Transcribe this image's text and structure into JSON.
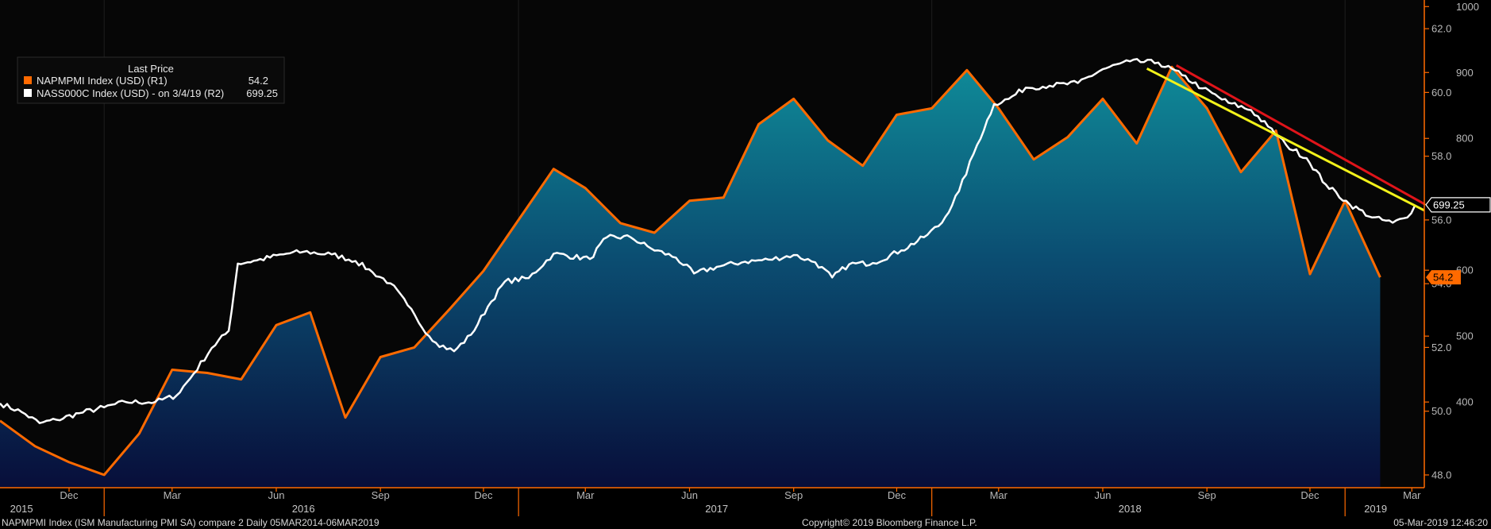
{
  "chart_data": {
    "type": "line",
    "legend": {
      "title": "Last Price",
      "placement": "top-left",
      "entries": [
        {
          "label": "NAPMPMI Index (USD)  (R1)",
          "value": "54.2",
          "color": "#ff6a00"
        },
        {
          "label": "NASS000C Index (USD) -  on 3/4/19  (R2)",
          "value": "699.25",
          "color": "#ffffff"
        }
      ]
    },
    "x_axis": {
      "month_ticks": [
        {
          "label": "Dec",
          "date": "2015-12-01"
        },
        {
          "label": "Mar",
          "date": "2016-03-01"
        },
        {
          "label": "Jun",
          "date": "2016-06-01"
        },
        {
          "label": "Sep",
          "date": "2016-09-01"
        },
        {
          "label": "Dec",
          "date": "2016-12-01"
        },
        {
          "label": "Mar",
          "date": "2017-03-01"
        },
        {
          "label": "Jun",
          "date": "2017-06-01"
        },
        {
          "label": "Sep",
          "date": "2017-09-01"
        },
        {
          "label": "Dec",
          "date": "2017-12-01"
        },
        {
          "label": "Mar",
          "date": "2018-03-01"
        },
        {
          "label": "Jun",
          "date": "2018-06-01"
        },
        {
          "label": "Sep",
          "date": "2018-09-01"
        },
        {
          "label": "Dec",
          "date": "2018-12-01"
        },
        {
          "label": "Mar",
          "date": "2019-03-01"
        }
      ],
      "year_labels": [
        {
          "label": "2015",
          "date": "2015-10-20"
        },
        {
          "label": "2016",
          "date": "2016-06-25"
        },
        {
          "label": "2017",
          "date": "2017-06-25"
        },
        {
          "label": "2018",
          "date": "2018-06-25"
        },
        {
          "label": "2019",
          "date": "2019-01-28"
        }
      ],
      "year_boundaries": [
        "2016-01-01",
        "2017-01-01",
        "2018-01-01",
        "2019-01-01"
      ],
      "range": [
        "2015-10-01",
        "2019-03-12"
      ]
    },
    "y_axis_r1": {
      "range": [
        47.6,
        62.9
      ],
      "ticks": [
        "48.0",
        "50.0",
        "52.0",
        "54.0",
        "56.0",
        "58.0",
        "60.0",
        "62.0"
      ]
    },
    "y_axis_r2": {
      "range": [
        270,
        1010
      ],
      "ticks": [
        "400",
        "500",
        "600",
        "700",
        "800",
        "900",
        "1000"
      ]
    },
    "series": [
      {
        "name": "NAPMPMI Index (USD)",
        "axis": "R1",
        "color": "#ff6a00",
        "fill_area": true,
        "last_value_label": "54.2",
        "points": [
          {
            "x": "2015-10-01",
            "y": 49.7
          },
          {
            "x": "2015-11-01",
            "y": 48.9
          },
          {
            "x": "2015-12-01",
            "y": 48.4
          },
          {
            "x": "2016-01-01",
            "y": 48.0
          },
          {
            "x": "2016-02-01",
            "y": 49.3
          },
          {
            "x": "2016-03-01",
            "y": 51.3
          },
          {
            "x": "2016-04-01",
            "y": 51.2
          },
          {
            "x": "2016-05-01",
            "y": 51.0
          },
          {
            "x": "2016-06-01",
            "y": 52.7
          },
          {
            "x": "2016-07-01",
            "y": 53.1
          },
          {
            "x": "2016-08-01",
            "y": 49.8
          },
          {
            "x": "2016-09-01",
            "y": 51.7
          },
          {
            "x": "2016-10-01",
            "y": 52.0
          },
          {
            "x": "2016-11-01",
            "y": 53.2
          },
          {
            "x": "2016-12-01",
            "y": 54.4
          },
          {
            "x": "2017-01-01",
            "y": 56.0
          },
          {
            "x": "2017-02-01",
            "y": 57.6
          },
          {
            "x": "2017-03-01",
            "y": 57.0
          },
          {
            "x": "2017-04-01",
            "y": 55.9
          },
          {
            "x": "2017-05-01",
            "y": 55.6
          },
          {
            "x": "2017-06-01",
            "y": 56.6
          },
          {
            "x": "2017-07-01",
            "y": 56.7
          },
          {
            "x": "2017-08-01",
            "y": 59.0
          },
          {
            "x": "2017-09-01",
            "y": 59.8
          },
          {
            "x": "2017-10-01",
            "y": 58.5
          },
          {
            "x": "2017-11-01",
            "y": 57.7
          },
          {
            "x": "2017-12-01",
            "y": 59.3
          },
          {
            "x": "2018-01-01",
            "y": 59.5
          },
          {
            "x": "2018-02-01",
            "y": 60.7
          },
          {
            "x": "2018-03-01",
            "y": 59.5
          },
          {
            "x": "2018-04-01",
            "y": 57.9
          },
          {
            "x": "2018-05-01",
            "y": 58.6
          },
          {
            "x": "2018-06-01",
            "y": 59.8
          },
          {
            "x": "2018-07-01",
            "y": 58.4
          },
          {
            "x": "2018-08-01",
            "y": 60.8
          },
          {
            "x": "2018-09-01",
            "y": 59.5
          },
          {
            "x": "2018-10-01",
            "y": 57.5
          },
          {
            "x": "2018-11-01",
            "y": 58.8
          },
          {
            "x": "2018-12-01",
            "y": 54.3
          },
          {
            "x": "2019-01-01",
            "y": 56.6
          },
          {
            "x": "2019-02-01",
            "y": 54.2
          }
        ]
      },
      {
        "name": "NASS000C Index (USD)",
        "axis": "R2",
        "color": "#ffffff",
        "last_value_label": "699.25",
        "points": [
          {
            "x": "2015-10-01",
            "y": 398
          },
          {
            "x": "2015-10-20",
            "y": 385
          },
          {
            "x": "2015-11-05",
            "y": 368
          },
          {
            "x": "2015-11-20",
            "y": 373
          },
          {
            "x": "2015-12-10",
            "y": 383
          },
          {
            "x": "2016-01-01",
            "y": 392
          },
          {
            "x": "2016-01-20",
            "y": 400
          },
          {
            "x": "2016-02-15",
            "y": 400
          },
          {
            "x": "2016-03-05",
            "y": 410
          },
          {
            "x": "2016-03-20",
            "y": 443
          },
          {
            "x": "2016-04-05",
            "y": 482
          },
          {
            "x": "2016-04-20",
            "y": 508
          },
          {
            "x": "2016-04-28",
            "y": 610
          },
          {
            "x": "2016-05-15",
            "y": 615
          },
          {
            "x": "2016-06-10",
            "y": 625
          },
          {
            "x": "2016-06-25",
            "y": 628
          },
          {
            "x": "2016-07-20",
            "y": 624
          },
          {
            "x": "2016-08-10",
            "y": 614
          },
          {
            "x": "2016-08-25",
            "y": 597
          },
          {
            "x": "2016-09-10",
            "y": 580
          },
          {
            "x": "2016-09-25",
            "y": 547
          },
          {
            "x": "2016-10-05",
            "y": 520
          },
          {
            "x": "2016-10-20",
            "y": 490
          },
          {
            "x": "2016-11-05",
            "y": 477
          },
          {
            "x": "2016-11-20",
            "y": 502
          },
          {
            "x": "2016-12-05",
            "y": 545
          },
          {
            "x": "2016-12-20",
            "y": 583
          },
          {
            "x": "2017-01-10",
            "y": 588
          },
          {
            "x": "2017-02-01",
            "y": 625
          },
          {
            "x": "2017-03-05",
            "y": 617
          },
          {
            "x": "2017-03-20",
            "y": 650
          },
          {
            "x": "2017-04-10",
            "y": 650
          },
          {
            "x": "2017-04-28",
            "y": 633
          },
          {
            "x": "2017-05-20",
            "y": 619
          },
          {
            "x": "2017-06-05",
            "y": 595
          },
          {
            "x": "2017-06-25",
            "y": 605
          },
          {
            "x": "2017-07-20",
            "y": 613
          },
          {
            "x": "2017-08-10",
            "y": 616
          },
          {
            "x": "2017-09-01",
            "y": 623
          },
          {
            "x": "2017-09-20",
            "y": 612
          },
          {
            "x": "2017-10-05",
            "y": 589
          },
          {
            "x": "2017-10-20",
            "y": 609
          },
          {
            "x": "2017-11-10",
            "y": 611
          },
          {
            "x": "2017-12-05",
            "y": 630
          },
          {
            "x": "2017-12-25",
            "y": 650
          },
          {
            "x": "2018-01-10",
            "y": 672
          },
          {
            "x": "2018-01-25",
            "y": 720
          },
          {
            "x": "2018-02-10",
            "y": 790
          },
          {
            "x": "2018-02-25",
            "y": 852
          },
          {
            "x": "2018-03-10",
            "y": 860
          },
          {
            "x": "2018-03-25",
            "y": 877
          },
          {
            "x": "2018-04-15",
            "y": 880
          },
          {
            "x": "2018-05-10",
            "y": 884
          },
          {
            "x": "2018-06-01",
            "y": 905
          },
          {
            "x": "2018-06-25",
            "y": 917
          },
          {
            "x": "2018-07-20",
            "y": 915
          },
          {
            "x": "2018-08-10",
            "y": 896
          },
          {
            "x": "2018-08-28",
            "y": 876
          },
          {
            "x": "2018-09-20",
            "y": 854
          },
          {
            "x": "2018-10-10",
            "y": 843
          },
          {
            "x": "2018-10-25",
            "y": 818
          },
          {
            "x": "2018-11-10",
            "y": 790
          },
          {
            "x": "2018-11-28",
            "y": 770
          },
          {
            "x": "2018-12-15",
            "y": 730
          },
          {
            "x": "2019-01-05",
            "y": 700
          },
          {
            "x": "2019-01-25",
            "y": 680
          },
          {
            "x": "2019-02-12",
            "y": 672
          },
          {
            "x": "2019-02-25",
            "y": 680
          },
          {
            "x": "2019-03-04",
            "y": 699.25
          }
        ]
      }
    ],
    "trendlines": [
      {
        "name": "yellow-trendline",
        "color": "#f2f21a",
        "axis": "R1",
        "from": {
          "x": "2018-07-10",
          "y": 60.75
        },
        "to": {
          "x": "2019-03-12",
          "y": 56.3
        }
      },
      {
        "name": "red-trendline",
        "color": "#e0141a",
        "axis": "R1",
        "from": {
          "x": "2018-08-05",
          "y": 60.85
        },
        "to": {
          "x": "2019-03-12",
          "y": 56.5
        }
      }
    ],
    "grid": false
  },
  "footer": {
    "left": "NAPMPMI Index (ISM Manufacturing PMI SA) compare 2  Daily 05MAR2014-06MAR2019",
    "center": "Copyright© 2019 Bloomberg Finance L.P.",
    "right": "05-Mar-2019 12:46:20"
  }
}
